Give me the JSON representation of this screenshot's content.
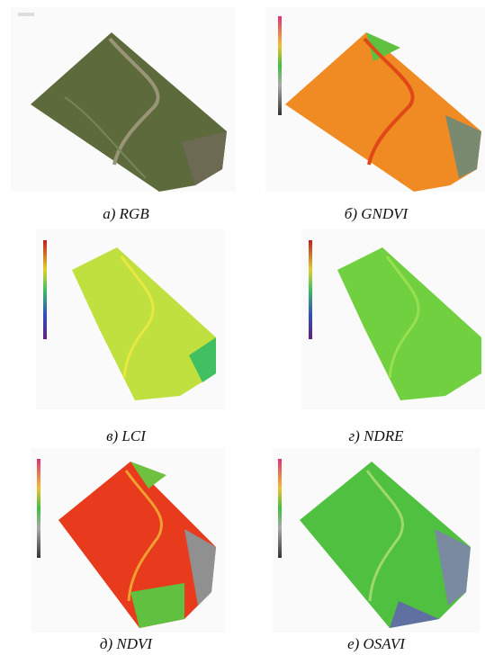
{
  "figure": {
    "captions": [
      "а) RGB",
      "б) GNDVI",
      "в) LCI",
      "г) NDRE",
      "д) NDVI",
      "е) OSAVI"
    ]
  }
}
